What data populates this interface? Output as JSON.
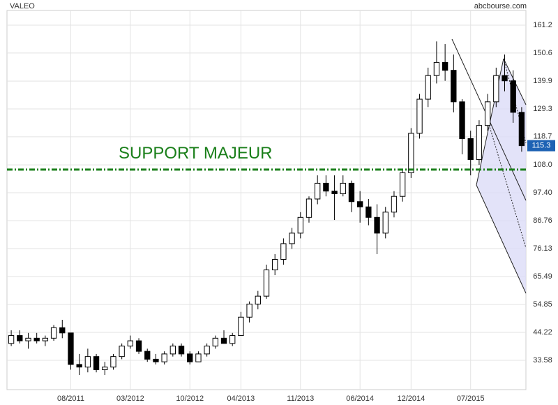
{
  "chart_data": {
    "type": "candlestick",
    "title": "VALEO",
    "source": "abcbourse.com",
    "categories": [
      null,
      null,
      null,
      null,
      null,
      null,
      null,
      "08/2011",
      null,
      null,
      null,
      null,
      null,
      null,
      "03/2012",
      null,
      null,
      null,
      null,
      null,
      null,
      "10/2012",
      null,
      null,
      null,
      null,
      null,
      "04/2013",
      null,
      null,
      null,
      null,
      null,
      null,
      "11/2013",
      null,
      null,
      null,
      null,
      null,
      null,
      "06/2014",
      null,
      null,
      null,
      null,
      null,
      "12/2014",
      null,
      null,
      null,
      null,
      null,
      null,
      "07/2015",
      null,
      null,
      null,
      null,
      null,
      null
    ],
    "open": [
      40,
      43,
      41,
      42,
      41,
      42,
      46,
      44,
      32,
      31,
      35,
      30,
      31,
      35,
      39,
      41,
      37,
      34,
      33,
      36,
      39,
      36,
      33,
      36,
      39,
      42,
      40,
      43,
      50,
      55,
      58,
      68,
      72,
      78,
      82,
      88,
      95,
      101,
      98,
      97,
      101,
      94,
      92,
      88,
      82,
      90,
      96,
      105,
      120,
      133,
      142,
      147,
      144,
      132,
      118,
      110,
      123,
      132,
      142,
      140,
      128
    ],
    "high": [
      45,
      45,
      44,
      44,
      43,
      47,
      49,
      44,
      36,
      38,
      36,
      33,
      36,
      40,
      43,
      42,
      38,
      36,
      37,
      40,
      40,
      37,
      37,
      40,
      43,
      45,
      44,
      52,
      56,
      60,
      70,
      74,
      80,
      84,
      90,
      96,
      104,
      104,
      104,
      104,
      102,
      98,
      95,
      93,
      92,
      98,
      106,
      122,
      135,
      145,
      155,
      154,
      150,
      133,
      121,
      125,
      135,
      145,
      150,
      144,
      130
    ],
    "low": [
      39,
      40,
      38,
      40,
      39,
      41,
      42,
      30,
      28,
      29,
      29,
      28,
      30,
      34,
      38,
      36,
      33,
      32,
      32,
      35,
      35,
      32,
      33,
      35,
      38,
      40,
      39,
      43,
      48,
      53,
      57,
      66,
      70,
      76,
      80,
      86,
      93,
      96,
      87,
      96,
      90,
      86,
      85,
      74,
      80,
      88,
      94,
      103,
      118,
      130,
      139,
      140,
      128,
      112,
      104,
      108,
      121,
      130,
      136,
      124,
      113
    ],
    "close": [
      43,
      41,
      42,
      41,
      42,
      46,
      44,
      32,
      31,
      35,
      30,
      31,
      35,
      39,
      41,
      37,
      34,
      33,
      36,
      39,
      36,
      33,
      36,
      39,
      42,
      40,
      43,
      50,
      55,
      58,
      68,
      72,
      78,
      82,
      88,
      95,
      101,
      98,
      97,
      101,
      94,
      92,
      88,
      82,
      90,
      96,
      105,
      120,
      133,
      142,
      147,
      144,
      132,
      118,
      110,
      123,
      132,
      142,
      140,
      128,
      115.3
    ],
    "up_color": "#ffffff",
    "down_color": "#000000",
    "edge_color": "#000000",
    "ylim": [
      22.41,
      166.78
    ],
    "yticks": [
      33.58,
      44.22,
      54.85,
      65.49,
      76.13,
      86.76,
      {
        "value": 97.4,
        "label": "97.40"
      },
      {
        "value": 108,
        "label": "108.0"
      },
      118.7,
      129.3,
      139.9,
      150.6,
      161.2
    ],
    "grid": true,
    "last_price": 115.3,
    "last_price_color": "#1e62b4",
    "support_label": "SUPPORT MAJEUR",
    "support_level": 106.2,
    "support_color": "#1a7f1a"
  }
}
